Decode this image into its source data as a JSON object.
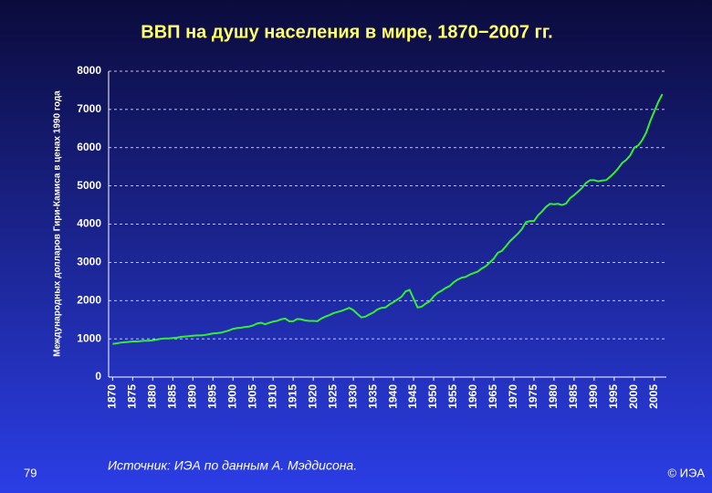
{
  "chart_data": {
    "type": "line",
    "title": "ВВП на душу населения в мире, 1870−2007 гг.",
    "ylabel": "Международных долларов Гири-Камиса в ценах 1990 года",
    "color": "#33ee33",
    "grid": true,
    "xlim": [
      1869,
      2008
    ],
    "ylim": [
      0,
      8000
    ],
    "yticks": [
      0,
      1000,
      2000,
      3000,
      4000,
      5000,
      6000,
      7000,
      8000
    ],
    "xticks": [
      1870,
      1875,
      1880,
      1885,
      1890,
      1895,
      1900,
      1905,
      1910,
      1915,
      1920,
      1925,
      1930,
      1935,
      1940,
      1945,
      1950,
      1955,
      1960,
      1965,
      1970,
      1975,
      1980,
      1985,
      1990,
      1995,
      2000,
      2005
    ],
    "x": [
      1870,
      1871,
      1872,
      1873,
      1874,
      1875,
      1876,
      1877,
      1878,
      1879,
      1880,
      1881,
      1882,
      1883,
      1884,
      1885,
      1886,
      1887,
      1888,
      1889,
      1890,
      1891,
      1892,
      1893,
      1894,
      1895,
      1896,
      1897,
      1898,
      1899,
      1900,
      1901,
      1902,
      1903,
      1904,
      1905,
      1906,
      1907,
      1908,
      1909,
      1910,
      1911,
      1912,
      1913,
      1914,
      1915,
      1916,
      1917,
      1918,
      1919,
      1920,
      1921,
      1922,
      1923,
      1924,
      1925,
      1926,
      1927,
      1928,
      1929,
      1930,
      1931,
      1932,
      1933,
      1934,
      1935,
      1936,
      1937,
      1938,
      1939,
      1940,
      1941,
      1942,
      1943,
      1944,
      1945,
      1946,
      1947,
      1948,
      1949,
      1950,
      1951,
      1952,
      1953,
      1954,
      1955,
      1956,
      1957,
      1958,
      1959,
      1960,
      1961,
      1962,
      1963,
      1964,
      1965,
      1966,
      1967,
      1968,
      1969,
      1970,
      1971,
      1972,
      1973,
      1974,
      1975,
      1976,
      1977,
      1978,
      1979,
      1980,
      1981,
      1982,
      1983,
      1984,
      1985,
      1986,
      1987,
      1988,
      1989,
      1990,
      1991,
      1992,
      1993,
      1994,
      1995,
      1996,
      1997,
      1998,
      1999,
      2000,
      2001,
      2002,
      2003,
      2004,
      2005,
      2006,
      2007
    ],
    "values": [
      870,
      880,
      900,
      910,
      920,
      930,
      930,
      940,
      950,
      950,
      960,
      980,
      1000,
      1010,
      1010,
      1020,
      1030,
      1050,
      1060,
      1070,
      1080,
      1090,
      1090,
      1100,
      1120,
      1140,
      1150,
      1160,
      1190,
      1220,
      1260,
      1280,
      1290,
      1310,
      1320,
      1350,
      1400,
      1420,
      1380,
      1420,
      1450,
      1470,
      1510,
      1530,
      1460,
      1460,
      1520,
      1510,
      1480,
      1470,
      1470,
      1460,
      1530,
      1580,
      1620,
      1670,
      1700,
      1730,
      1770,
      1810,
      1750,
      1650,
      1560,
      1580,
      1640,
      1690,
      1770,
      1810,
      1820,
      1900,
      1960,
      2030,
      2100,
      2240,
      2280,
      2050,
      1820,
      1840,
      1920,
      1980,
      2110,
      2200,
      2260,
      2330,
      2380,
      2480,
      2550,
      2600,
      2620,
      2680,
      2720,
      2760,
      2840,
      2900,
      3000,
      3100,
      3250,
      3300,
      3420,
      3550,
      3650,
      3750,
      3870,
      4050,
      4080,
      4080,
      4230,
      4330,
      4450,
      4530,
      4520,
      4530,
      4500,
      4540,
      4680,
      4760,
      4850,
      4950,
      5080,
      5150,
      5150,
      5120,
      5140,
      5150,
      5240,
      5340,
      5460,
      5600,
      5680,
      5800,
      6000,
      6060,
      6200,
      6400,
      6700,
      6950,
      7200,
      7400
    ]
  },
  "page": {
    "slide_number": "79",
    "source": "Источник: ИЭА по данным А. Мэддисона.",
    "copyright": "© ИЭА"
  }
}
